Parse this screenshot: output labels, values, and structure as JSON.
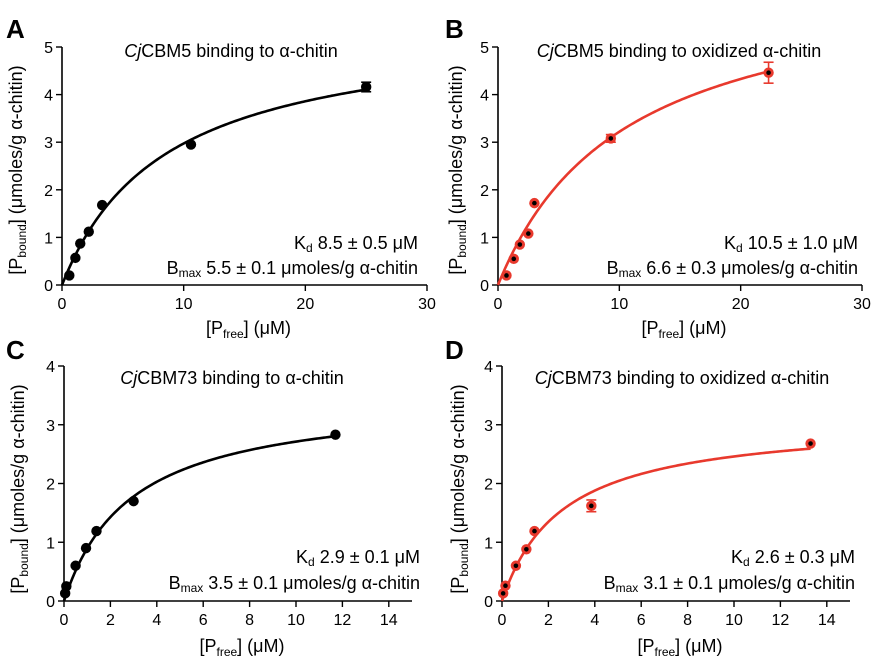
{
  "chart_data": [
    {
      "type": "scatter",
      "panel": "A",
      "title_italic": "Cj",
      "title_rest": "CBM5 binding to α-chitin",
      "xlabel": {
        "prefix": "[P",
        "sub": "free",
        "suffix": "] (μM)"
      },
      "ylabel": {
        "prefix": "[P",
        "sub": "bound",
        "suffix": "] (μmoles/g α-chitin)"
      },
      "xlim": [
        0,
        30
      ],
      "ylim": [
        0,
        5
      ],
      "xticks": [
        0,
        10,
        20,
        30
      ],
      "yticks": [
        0,
        1,
        2,
        3,
        4,
        5
      ],
      "color": "#000000",
      "fit": {
        "kd": 8.5,
        "bmax": 5.5
      },
      "points": [
        {
          "x": 0.6,
          "y": 0.2,
          "err": 0
        },
        {
          "x": 1.1,
          "y": 0.57,
          "err": 0
        },
        {
          "x": 1.5,
          "y": 0.87,
          "err": 0
        },
        {
          "x": 2.2,
          "y": 1.12,
          "err": 0
        },
        {
          "x": 3.3,
          "y": 1.68,
          "err": 0
        },
        {
          "x": 10.6,
          "y": 2.95,
          "err": 0
        },
        {
          "x": 25.0,
          "y": 4.16,
          "err": 0.1
        }
      ],
      "annotation": {
        "kd_sym": "K",
        "kd_sub": "d",
        "kd_text": " 8.5 ± 0.5 μM",
        "bmax_sym": "B",
        "bmax_sub": "max",
        "bmax_text": " 5.5 ± 0.1 μmoles/g α-chitin"
      }
    },
    {
      "type": "scatter",
      "panel": "B",
      "title_italic": "Cj",
      "title_rest": "CBM5 binding to oxidized α-chitin",
      "xlabel": {
        "prefix": "[P",
        "sub": "free",
        "suffix": "] (μM)"
      },
      "ylabel": {
        "prefix": "[P",
        "sub": "bound",
        "suffix": "] (μmoles/g α-chitin)"
      },
      "xlim": [
        0,
        30
      ],
      "ylim": [
        0,
        5
      ],
      "xticks": [
        0,
        10,
        20,
        30
      ],
      "yticks": [
        0,
        1,
        2,
        3,
        4,
        5
      ],
      "color": "#e8392d",
      "fit": {
        "kd": 10.5,
        "bmax": 6.6
      },
      "points": [
        {
          "x": 0.7,
          "y": 0.2,
          "err": 0
        },
        {
          "x": 1.3,
          "y": 0.55,
          "err": 0
        },
        {
          "x": 1.8,
          "y": 0.85,
          "err": 0
        },
        {
          "x": 2.5,
          "y": 1.08,
          "err": 0
        },
        {
          "x": 3.0,
          "y": 1.72,
          "err": 0
        },
        {
          "x": 9.3,
          "y": 3.08,
          "err": 0.08
        },
        {
          "x": 22.3,
          "y": 4.46,
          "err": 0.22
        }
      ],
      "annotation": {
        "kd_sym": "K",
        "kd_sub": "d",
        "kd_text": " 10.5 ± 1.0 μM",
        "bmax_sym": "B",
        "bmax_sub": "max",
        "bmax_text": " 6.6 ± 0.3 μmoles/g α-chitin"
      }
    },
    {
      "type": "scatter",
      "panel": "C",
      "title_italic": "Cj",
      "title_rest": "CBM73 binding to α-chitin",
      "xlabel": {
        "prefix": "[P",
        "sub": "free",
        "suffix": "] (μM)"
      },
      "ylabel": {
        "prefix": "[P",
        "sub": "bound",
        "suffix": "] (μmoles/g α-chitin)"
      },
      "xlim": [
        0,
        15
      ],
      "ylim": [
        0,
        4
      ],
      "xticks": [
        0,
        2,
        4,
        6,
        8,
        10,
        12,
        14
      ],
      "yticks": [
        0,
        1,
        2,
        3,
        4
      ],
      "color": "#000000",
      "fit": {
        "kd": 2.9,
        "bmax": 3.5
      },
      "points": [
        {
          "x": 0.05,
          "y": 0.13,
          "err": 0
        },
        {
          "x": 0.1,
          "y": 0.25,
          "err": 0
        },
        {
          "x": 0.5,
          "y": 0.6,
          "err": 0
        },
        {
          "x": 0.95,
          "y": 0.9,
          "err": 0
        },
        {
          "x": 1.4,
          "y": 1.19,
          "err": 0
        },
        {
          "x": 3.0,
          "y": 1.7,
          "err": 0
        },
        {
          "x": 11.7,
          "y": 2.83,
          "err": 0
        }
      ],
      "annotation": {
        "kd_sym": "K",
        "kd_sub": "d",
        "kd_text": " 2.9 ± 0.1 μM",
        "bmax_sym": "B",
        "bmax_sub": "max",
        "bmax_text": " 3.5 ± 0.1 μmoles/g α-chitin"
      }
    },
    {
      "type": "scatter",
      "panel": "D",
      "title_italic": "Cj",
      "title_rest": "CBM73 binding to oxidized α-chitin",
      "xlabel": {
        "prefix": "[P",
        "sub": "free",
        "suffix": "] (μM)"
      },
      "ylabel": {
        "prefix": "[P",
        "sub": "bound",
        "suffix": "] (μmoles/g α-chitin)"
      },
      "xlim": [
        0,
        15
      ],
      "ylim": [
        0,
        4
      ],
      "xticks": [
        0,
        2,
        4,
        6,
        8,
        10,
        12,
        14
      ],
      "yticks": [
        0,
        1,
        2,
        3,
        4
      ],
      "color": "#e8392d",
      "fit": {
        "kd": 2.6,
        "bmax": 3.1
      },
      "points": [
        {
          "x": 0.05,
          "y": 0.13,
          "err": 0
        },
        {
          "x": 0.15,
          "y": 0.26,
          "err": 0
        },
        {
          "x": 0.6,
          "y": 0.6,
          "err": 0
        },
        {
          "x": 1.05,
          "y": 0.88,
          "err": 0
        },
        {
          "x": 1.4,
          "y": 1.19,
          "err": 0
        },
        {
          "x": 3.85,
          "y": 1.62,
          "err": 0.1
        },
        {
          "x": 13.3,
          "y": 2.68,
          "err": 0
        }
      ],
      "annotation": {
        "kd_sym": "K",
        "kd_sub": "d",
        "kd_text": " 2.6 ± 0.3 μM",
        "bmax_sym": "B",
        "bmax_sub": "max",
        "bmax_text": " 3.1 ± 0.1 μmoles/g α-chitin"
      }
    }
  ]
}
